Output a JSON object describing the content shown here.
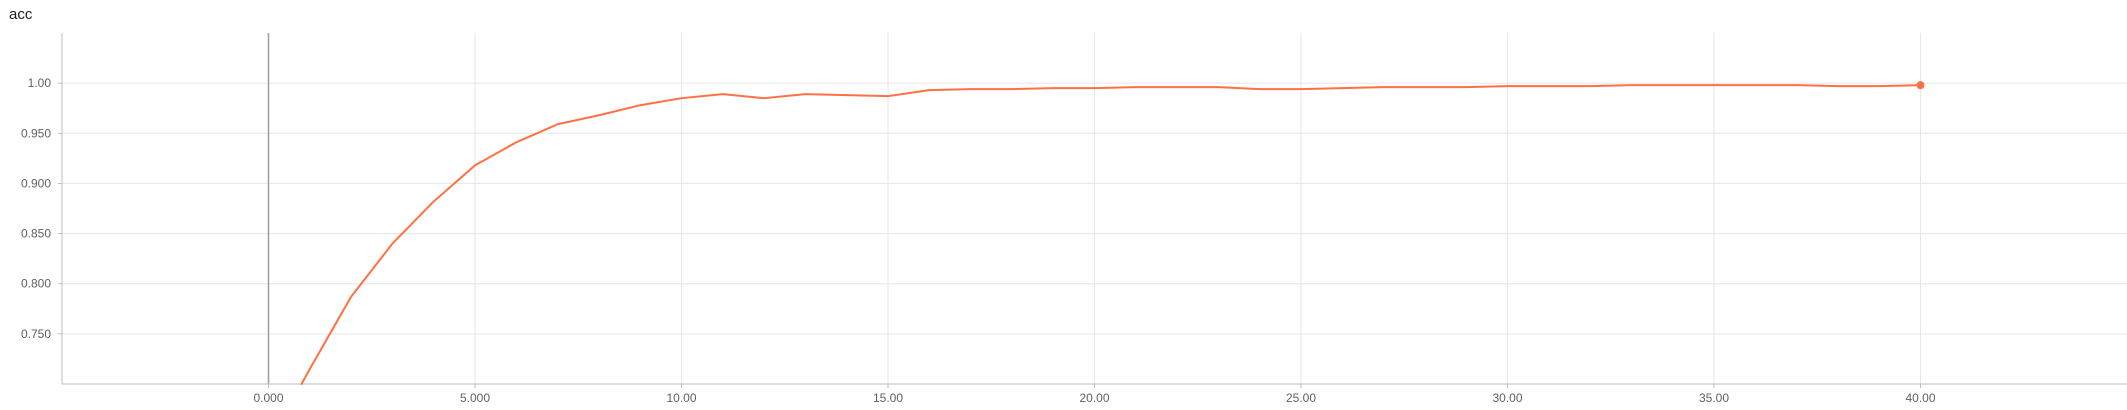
{
  "chart_data": {
    "type": "line",
    "title": "acc",
    "xlabel": "",
    "ylabel": "",
    "xlim": [
      -5,
      45
    ],
    "ylim": [
      0.7,
      1.05
    ],
    "grid": true,
    "x_ticks": [
      0,
      5,
      10,
      15,
      20,
      25,
      30,
      35,
      40
    ],
    "x_tick_labels": [
      "0.000",
      "5.000",
      "10.00",
      "15.00",
      "20.00",
      "25.00",
      "30.00",
      "35.00",
      "40.00"
    ],
    "y_ticks": [
      0.75,
      0.8,
      0.85,
      0.9,
      0.95,
      1.0
    ],
    "y_tick_labels": [
      "0.750",
      "0.800",
      "0.850",
      "0.900",
      "0.950",
      "1.00"
    ],
    "series": [
      {
        "color": "#ff7043",
        "x": [
          0.8,
          1,
          2,
          3,
          4,
          5,
          6,
          7,
          8,
          9,
          10,
          11,
          12,
          13,
          14,
          15,
          16,
          17,
          18,
          19,
          20,
          21,
          22,
          23,
          24,
          25,
          26,
          27,
          28,
          29,
          30,
          31,
          32,
          33,
          34,
          35,
          36,
          37,
          38,
          39,
          40
        ],
        "y": [
          0.7,
          0.715,
          0.787,
          0.84,
          0.882,
          0.918,
          0.941,
          0.959,
          0.968,
          0.978,
          0.985,
          0.989,
          0.985,
          0.989,
          0.988,
          0.987,
          0.993,
          0.994,
          0.994,
          0.995,
          0.995,
          0.996,
          0.996,
          0.996,
          0.994,
          0.994,
          0.995,
          0.996,
          0.996,
          0.996,
          0.997,
          0.997,
          0.997,
          0.998,
          0.998,
          0.998,
          0.998,
          0.998,
          0.997,
          0.997,
          0.998
        ]
      }
    ]
  }
}
